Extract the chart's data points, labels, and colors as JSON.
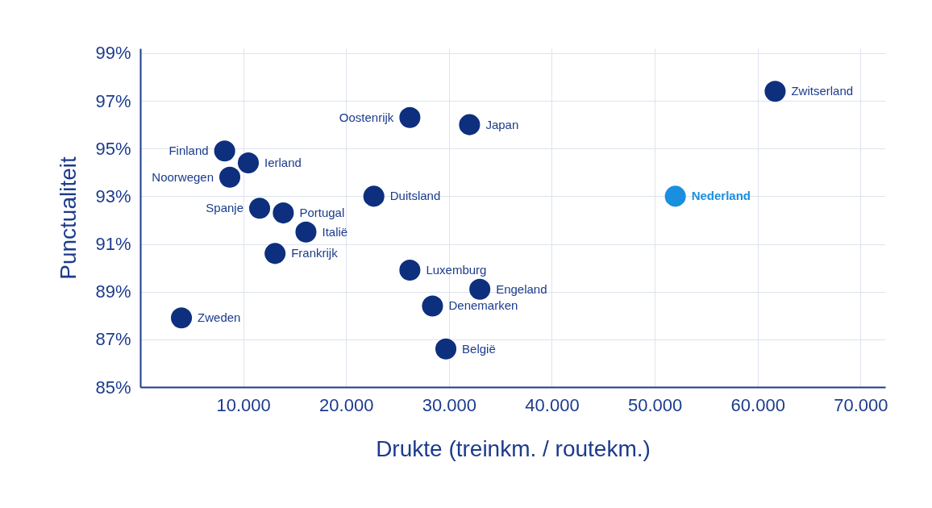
{
  "chart_data": {
    "type": "scatter",
    "xlabel": "Drukte (treinkm. / routekm.)",
    "ylabel": "Punctualiteit",
    "x": [
      61700,
      26200,
      32000,
      8200,
      10500,
      8700,
      22700,
      52000,
      11600,
      13900,
      16100,
      13100,
      26200,
      33000,
      28400,
      4000,
      29700
    ],
    "series": [
      {
        "color": "#0d2f7e",
        "values": [
          97.4,
          96.3,
          96.0,
          94.9,
          94.4,
          93.8,
          93.0,
          93.0,
          92.5,
          92.3,
          91.5,
          90.6,
          89.9,
          89.1,
          88.4,
          87.9,
          86.6
        ],
        "colors": [
          "#0d2f7e",
          "#0d2f7e",
          "#0d2f7e",
          "#0d2f7e",
          "#0d2f7e",
          "#0d2f7e",
          "#0d2f7e",
          "#1a8fe0",
          "#0d2f7e",
          "#0d2f7e",
          "#0d2f7e",
          "#0d2f7e",
          "#0d2f7e",
          "#0d2f7e",
          "#0d2f7e",
          "#0d2f7e",
          "#0d2f7e"
        ]
      }
    ],
    "annotations": [
      {
        "text": "Zwitserland",
        "x": 61700,
        "y": 97.4
      },
      {
        "text": "Oostenrijk",
        "x": 26200,
        "y": 96.3
      },
      {
        "text": "Japan",
        "x": 32000,
        "y": 96.0
      },
      {
        "text": "Finland",
        "x": 8200,
        "y": 94.9
      },
      {
        "text": "Ierland",
        "x": 10500,
        "y": 94.4
      },
      {
        "text": "Noorwegen",
        "x": 8700,
        "y": 93.8
      },
      {
        "text": "Duitsland",
        "x": 22700,
        "y": 93.0
      },
      {
        "text": "Nederland",
        "x": 52000,
        "y": 93.0
      },
      {
        "text": "Spanje",
        "x": 11600,
        "y": 92.5
      },
      {
        "text": "Portugal",
        "x": 13900,
        "y": 92.3
      },
      {
        "text": "Italië",
        "x": 16100,
        "y": 91.5
      },
      {
        "text": "Frankrijk",
        "x": 13100,
        "y": 90.6
      },
      {
        "text": "Luxemburg",
        "x": 26200,
        "y": 89.9
      },
      {
        "text": "Engeland",
        "x": 33000,
        "y": 89.1
      },
      {
        "text": "Denemarken",
        "x": 28400,
        "y": 88.4
      },
      {
        "text": "Zweden",
        "x": 4000,
        "y": 87.9
      },
      {
        "text": "België",
        "x": 29700,
        "y": 86.6
      }
    ],
    "xlim": [
      0,
      72400
    ],
    "xticks": [
      {
        "value": 10000,
        "label": "10.000"
      },
      {
        "value": 20000,
        "label": "20.000"
      },
      {
        "value": 30000,
        "label": "30.000"
      },
      {
        "value": 40000,
        "label": "40.000"
      },
      {
        "value": 50000,
        "label": "50.000"
      },
      {
        "value": 60000,
        "label": "60.000"
      },
      {
        "value": 70000,
        "label": "70.000"
      }
    ],
    "ylim": [
      85,
      99.2
    ],
    "yticks": [
      {
        "value": 85,
        "label": "85%"
      },
      {
        "value": 87,
        "label": "87%"
      },
      {
        "value": 89,
        "label": "89%"
      },
      {
        "value": 91,
        "label": "91%"
      },
      {
        "value": 93,
        "label": "93%"
      },
      {
        "value": 95,
        "label": "95%"
      },
      {
        "value": 97,
        "label": "97%"
      },
      {
        "value": 99,
        "label": "99%"
      }
    ],
    "grid": true,
    "marker": "circle"
  }
}
